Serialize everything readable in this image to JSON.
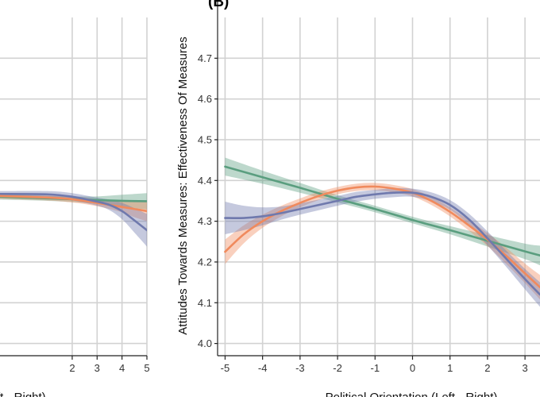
{
  "chart_data": [
    {
      "panel": "left",
      "type": "line",
      "title": "",
      "xlabel": "ft - Right)",
      "ylabel": "",
      "xlim": [
        -0.9,
        5
      ],
      "ylim": [
        3.97,
        4.8
      ],
      "x_ticks": [
        2,
        3,
        4,
        5
      ],
      "x_tick_labels": [
        "2",
        "3",
        "4",
        "5"
      ],
      "y_grid": [
        4.0,
        4.1,
        4.2,
        4.3,
        4.4,
        4.5,
        4.6,
        4.7
      ],
      "grid": true,
      "colors": {
        "green": "#5a9e7f",
        "orange": "#f08a5d",
        "purple": "#6f79ad"
      },
      "series": [
        {
          "color": "green",
          "x": [
            -0.9,
            1,
            2,
            3,
            4,
            5
          ],
          "y": [
            4.36,
            4.356,
            4.354,
            4.352,
            4.35,
            4.349
          ],
          "ci": [
            [
              4.353,
              4.367
            ],
            [
              4.35,
              4.362
            ],
            [
              4.347,
              4.361
            ],
            [
              4.343,
              4.361
            ],
            [
              4.335,
              4.365
            ],
            [
              4.329,
              4.369
            ]
          ]
        },
        {
          "color": "orange",
          "x": [
            -0.9,
            1,
            2,
            3,
            4,
            4.5,
            5
          ],
          "y": [
            4.362,
            4.358,
            4.354,
            4.345,
            4.335,
            4.33,
            4.325
          ],
          "ci": [
            [
              4.355,
              4.369
            ],
            [
              4.351,
              4.365
            ],
            [
              4.346,
              4.362
            ],
            [
              4.337,
              4.353
            ],
            [
              4.322,
              4.348
            ],
            [
              4.31,
              4.35
            ],
            [
              4.3,
              4.35
            ]
          ]
        },
        {
          "color": "purple",
          "x": [
            -0.9,
            1,
            2,
            3,
            3.5,
            4,
            4.5,
            5
          ],
          "y": [
            4.367,
            4.366,
            4.36,
            4.348,
            4.34,
            4.325,
            4.302,
            4.278
          ],
          "ci": [
            [
              4.36,
              4.374
            ],
            [
              4.358,
              4.374
            ],
            [
              4.351,
              4.369
            ],
            [
              4.338,
              4.358
            ],
            [
              4.327,
              4.353
            ],
            [
              4.305,
              4.345
            ],
            [
              4.272,
              4.332
            ],
            [
              4.238,
              4.318
            ]
          ]
        }
      ]
    },
    {
      "panel": "right",
      "type": "line",
      "title": "(B)",
      "xlabel": "Political Orientation (Left - Right)",
      "ylabel": "Attitudes Towards Measures: Effectiveness Of Measures",
      "xlim": [
        -5.2,
        3.4
      ],
      "ylim": [
        3.97,
        4.8
      ],
      "x_ticks": [
        -5,
        -4,
        -3,
        -2,
        -1,
        0,
        1,
        2,
        3
      ],
      "x_tick_labels": [
        "-5",
        "-4",
        "-3",
        "-2",
        "-1",
        "0",
        "1",
        "2",
        "3"
      ],
      "y_ticks": [
        4.0,
        4.1,
        4.2,
        4.3,
        4.4,
        4.5,
        4.6,
        4.7
      ],
      "y_tick_labels": [
        "4.0",
        "4.1",
        "4.2",
        "4.3",
        "4.4",
        "4.5",
        "4.6",
        "4.7"
      ],
      "grid": true,
      "colors": {
        "green": "#5a9e7f",
        "orange": "#f08a5d",
        "purple": "#6f79ad"
      },
      "series": [
        {
          "color": "green",
          "x": [
            -5,
            -4,
            -3,
            -2,
            -1,
            0,
            1,
            2,
            3,
            3.4
          ],
          "y": [
            4.434,
            4.408,
            4.382,
            4.355,
            4.33,
            4.303,
            4.278,
            4.252,
            4.226,
            4.216
          ],
          "ci": [
            [
              4.412,
              4.456
            ],
            [
              4.392,
              4.424
            ],
            [
              4.37,
              4.394
            ],
            [
              4.346,
              4.364
            ],
            [
              4.322,
              4.338
            ],
            [
              4.295,
              4.311
            ],
            [
              4.268,
              4.288
            ],
            [
              4.238,
              4.266
            ],
            [
              4.207,
              4.245
            ],
            [
              4.192,
              4.24
            ]
          ]
        },
        {
          "color": "orange",
          "x": [
            -5,
            -4.5,
            -4,
            -3.5,
            -3,
            -2.5,
            -2,
            -1.5,
            -1,
            -0.5,
            0,
            0.5,
            1,
            1.5,
            2,
            2.5,
            3,
            3.4
          ],
          "y": [
            4.225,
            4.268,
            4.3,
            4.325,
            4.345,
            4.362,
            4.375,
            4.383,
            4.385,
            4.38,
            4.37,
            4.35,
            4.323,
            4.29,
            4.255,
            4.215,
            4.172,
            4.138
          ],
          "ci": [
            [
              4.195,
              4.255
            ],
            [
              4.246,
              4.29
            ],
            [
              4.284,
              4.316
            ],
            [
              4.312,
              4.338
            ],
            [
              4.334,
              4.356
            ],
            [
              4.352,
              4.372
            ],
            [
              4.366,
              4.384
            ],
            [
              4.374,
              4.392
            ],
            [
              4.376,
              4.394
            ],
            [
              4.371,
              4.389
            ],
            [
              4.361,
              4.379
            ],
            [
              4.34,
              4.36
            ],
            [
              4.312,
              4.334
            ],
            [
              4.277,
              4.303
            ],
            [
              4.239,
              4.271
            ],
            [
              4.195,
              4.235
            ],
            [
              4.148,
              4.196
            ],
            [
              4.108,
              4.168
            ]
          ]
        },
        {
          "color": "purple",
          "x": [
            -5,
            -4.5,
            -4,
            -3.5,
            -3,
            -2.5,
            -2,
            -1.5,
            -1,
            -0.5,
            0,
            0.5,
            1,
            1.5,
            2,
            2.5,
            3,
            3.4
          ],
          "y": [
            4.308,
            4.308,
            4.312,
            4.32,
            4.33,
            4.34,
            4.35,
            4.36,
            4.366,
            4.37,
            4.37,
            4.36,
            4.34,
            4.305,
            4.258,
            4.208,
            4.158,
            4.12
          ],
          "ci": [
            [
              4.268,
              4.348
            ],
            [
              4.278,
              4.338
            ],
            [
              4.29,
              4.334
            ],
            [
              4.304,
              4.336
            ],
            [
              4.316,
              4.344
            ],
            [
              4.327,
              4.353
            ],
            [
              4.338,
              4.362
            ],
            [
              4.348,
              4.372
            ],
            [
              4.355,
              4.377
            ],
            [
              4.359,
              4.381
            ],
            [
              4.36,
              4.38
            ],
            [
              4.349,
              4.371
            ],
            [
              4.328,
              4.352
            ],
            [
              4.291,
              4.319
            ],
            [
              4.241,
              4.275
            ],
            [
              4.188,
              4.228
            ],
            [
              4.133,
              4.183
            ],
            [
              4.09,
              4.15
            ]
          ]
        }
      ]
    }
  ]
}
